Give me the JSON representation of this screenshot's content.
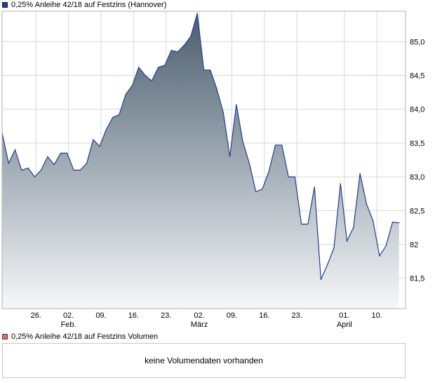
{
  "legend": {
    "price": "0,25% Anleihe 42/18 auf Festzins (Hannover)",
    "volume": "0,25% Anleihe 42/18 auf Festzins Volumen"
  },
  "volume_panel": {
    "message": "keine Volumendaten vorhanden"
  },
  "colors": {
    "line": "#1f3f8f",
    "fill_top": "#4a5d6e",
    "fill_bottom": "#f6f7f9",
    "grid": "#d8d8d8",
    "border": "#b0b0b0"
  },
  "chart_data": {
    "type": "area",
    "y_side": "right",
    "ylim": [
      81.05,
      85.45
    ],
    "yticks": [
      81.5,
      82.0,
      82.5,
      83.0,
      83.5,
      84.0,
      84.5,
      85.0
    ],
    "ytick_labels": [
      "81,5",
      "82",
      "82,5",
      "83,0",
      "83,5",
      "84,0",
      "84,5",
      "85,0"
    ],
    "xlim": [
      0,
      62
    ],
    "xticks": [
      {
        "x": 5.2,
        "label": "26.",
        "month": ""
      },
      {
        "x": 10.2,
        "label": "02.",
        "month": "Feb."
      },
      {
        "x": 15.2,
        "label": "09.",
        "month": ""
      },
      {
        "x": 20.2,
        "label": "16.",
        "month": ""
      },
      {
        "x": 25.2,
        "label": "23.",
        "month": ""
      },
      {
        "x": 30.3,
        "label": "02.",
        "month": "März"
      },
      {
        "x": 35.3,
        "label": "09.",
        "month": ""
      },
      {
        "x": 40.3,
        "label": "16.",
        "month": ""
      },
      {
        "x": 45.3,
        "label": "23.",
        "month": ""
      },
      {
        "x": 52.6,
        "label": "01.",
        "month": "April"
      },
      {
        "x": 57.6,
        "label": "10.",
        "month": ""
      }
    ],
    "series": [
      {
        "values": [
          83.65,
          83.2,
          83.4,
          83.1,
          83.13,
          83.0,
          83.1,
          83.3,
          83.18,
          83.35,
          83.35,
          83.1,
          83.1,
          83.2,
          83.55,
          83.45,
          83.7,
          83.88,
          83.92,
          84.22,
          84.35,
          84.62,
          84.5,
          84.42,
          84.62,
          84.65,
          84.87,
          84.85,
          84.95,
          85.08,
          85.42,
          84.58,
          84.58,
          84.3,
          83.95,
          83.3,
          84.07,
          83.52,
          83.2,
          82.78,
          82.82,
          83.08,
          83.47,
          83.47,
          83.0,
          83.0,
          82.3,
          82.3,
          82.85,
          81.48,
          81.7,
          81.95,
          82.9,
          82.05,
          82.25,
          83.05,
          82.6,
          82.35,
          81.83,
          81.98,
          82.33,
          82.32
        ]
      }
    ]
  }
}
